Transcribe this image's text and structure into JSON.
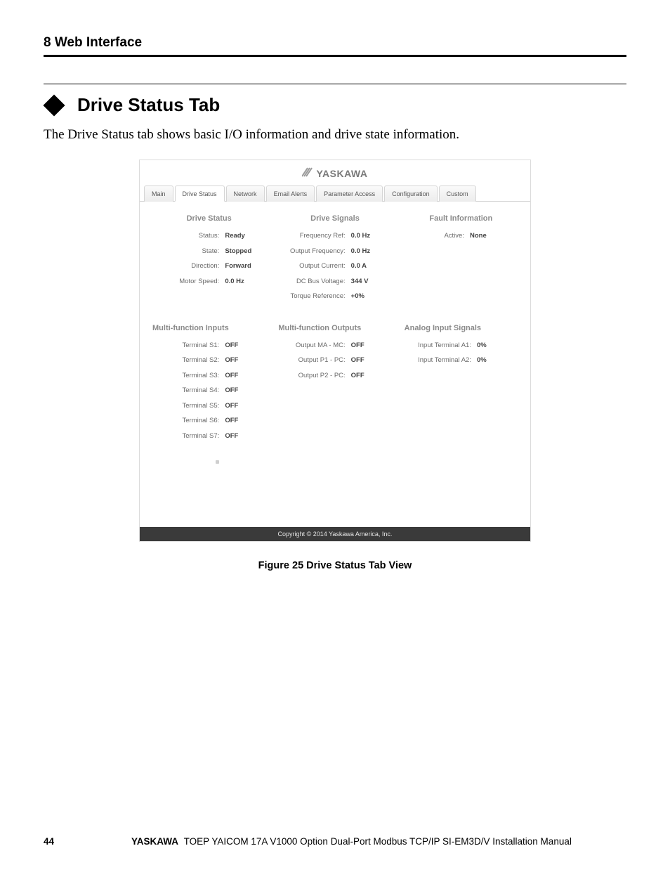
{
  "header": {
    "chapter": "8  Web Interface"
  },
  "section": {
    "title": "Drive Status Tab"
  },
  "body": {
    "text": "The Drive Status tab shows basic I/O information and drive state information."
  },
  "brand": {
    "name": "YASKAWA"
  },
  "tabs": {
    "items": [
      {
        "label": "Main"
      },
      {
        "label": "Drive Status"
      },
      {
        "label": "Network"
      },
      {
        "label": "Email Alerts"
      },
      {
        "label": "Parameter Access"
      },
      {
        "label": "Configuration"
      },
      {
        "label": "Custom"
      }
    ],
    "active_index": 1
  },
  "drive_status": {
    "title": "Drive Status",
    "rows": [
      {
        "label": "Status:",
        "value": "Ready"
      },
      {
        "label": "State:",
        "value": "Stopped"
      },
      {
        "label": "Direction:",
        "value": "Forward"
      },
      {
        "label": "Motor Speed:",
        "value": "0.0 Hz"
      }
    ]
  },
  "drive_signals": {
    "title": "Drive Signals",
    "rows": [
      {
        "label": "Frequency Ref:",
        "value": "0.0 Hz"
      },
      {
        "label": "Output Frequency:",
        "value": "0.0 Hz"
      },
      {
        "label": "Output Current:",
        "value": "0.0 A"
      },
      {
        "label": "DC Bus Voltage:",
        "value": "344 V"
      },
      {
        "label": "Torque Reference:",
        "value": "+0%"
      }
    ]
  },
  "fault_info": {
    "title": "Fault Information",
    "rows": [
      {
        "label": "Active:",
        "value": "None"
      }
    ]
  },
  "mfi": {
    "title": "Multi-function Inputs",
    "rows": [
      {
        "label": "Terminal S1:",
        "value": "OFF"
      },
      {
        "label": "Terminal S2:",
        "value": "OFF"
      },
      {
        "label": "Terminal S3:",
        "value": "OFF"
      },
      {
        "label": "Terminal S4:",
        "value": "OFF"
      },
      {
        "label": "Terminal S5:",
        "value": "OFF"
      },
      {
        "label": "Terminal S6:",
        "value": "OFF"
      },
      {
        "label": "Terminal S7:",
        "value": "OFF"
      }
    ]
  },
  "mfo": {
    "title": "Multi-function Outputs",
    "rows": [
      {
        "label": "Output MA - MC:",
        "value": "OFF"
      },
      {
        "label": "Output P1 - PC:",
        "value": "OFF"
      },
      {
        "label": "Output P2 - PC:",
        "value": "OFF"
      }
    ]
  },
  "analog": {
    "title": "Analog Input Signals",
    "rows": [
      {
        "label": "Input Terminal A1:",
        "value": "0%"
      },
      {
        "label": "Input Terminal A2:",
        "value": "0%"
      }
    ]
  },
  "copyright": {
    "text": "Copyright © 2014 Yaskawa America, Inc."
  },
  "caption": {
    "text": "Figure 25   Drive Status Tab View"
  },
  "footer": {
    "page": "44",
    "brand": "YASKAWA",
    "text": " TOEP YAICOM 17A V1000 Option Dual-Port Modbus TCP/IP SI-EM3D/V Installation Manual"
  },
  "colors": {
    "text": "#000000",
    "muted": "#6a6a6a",
    "section_head": "#8a8a8a",
    "copyright_bg": "#3a3a3a"
  }
}
